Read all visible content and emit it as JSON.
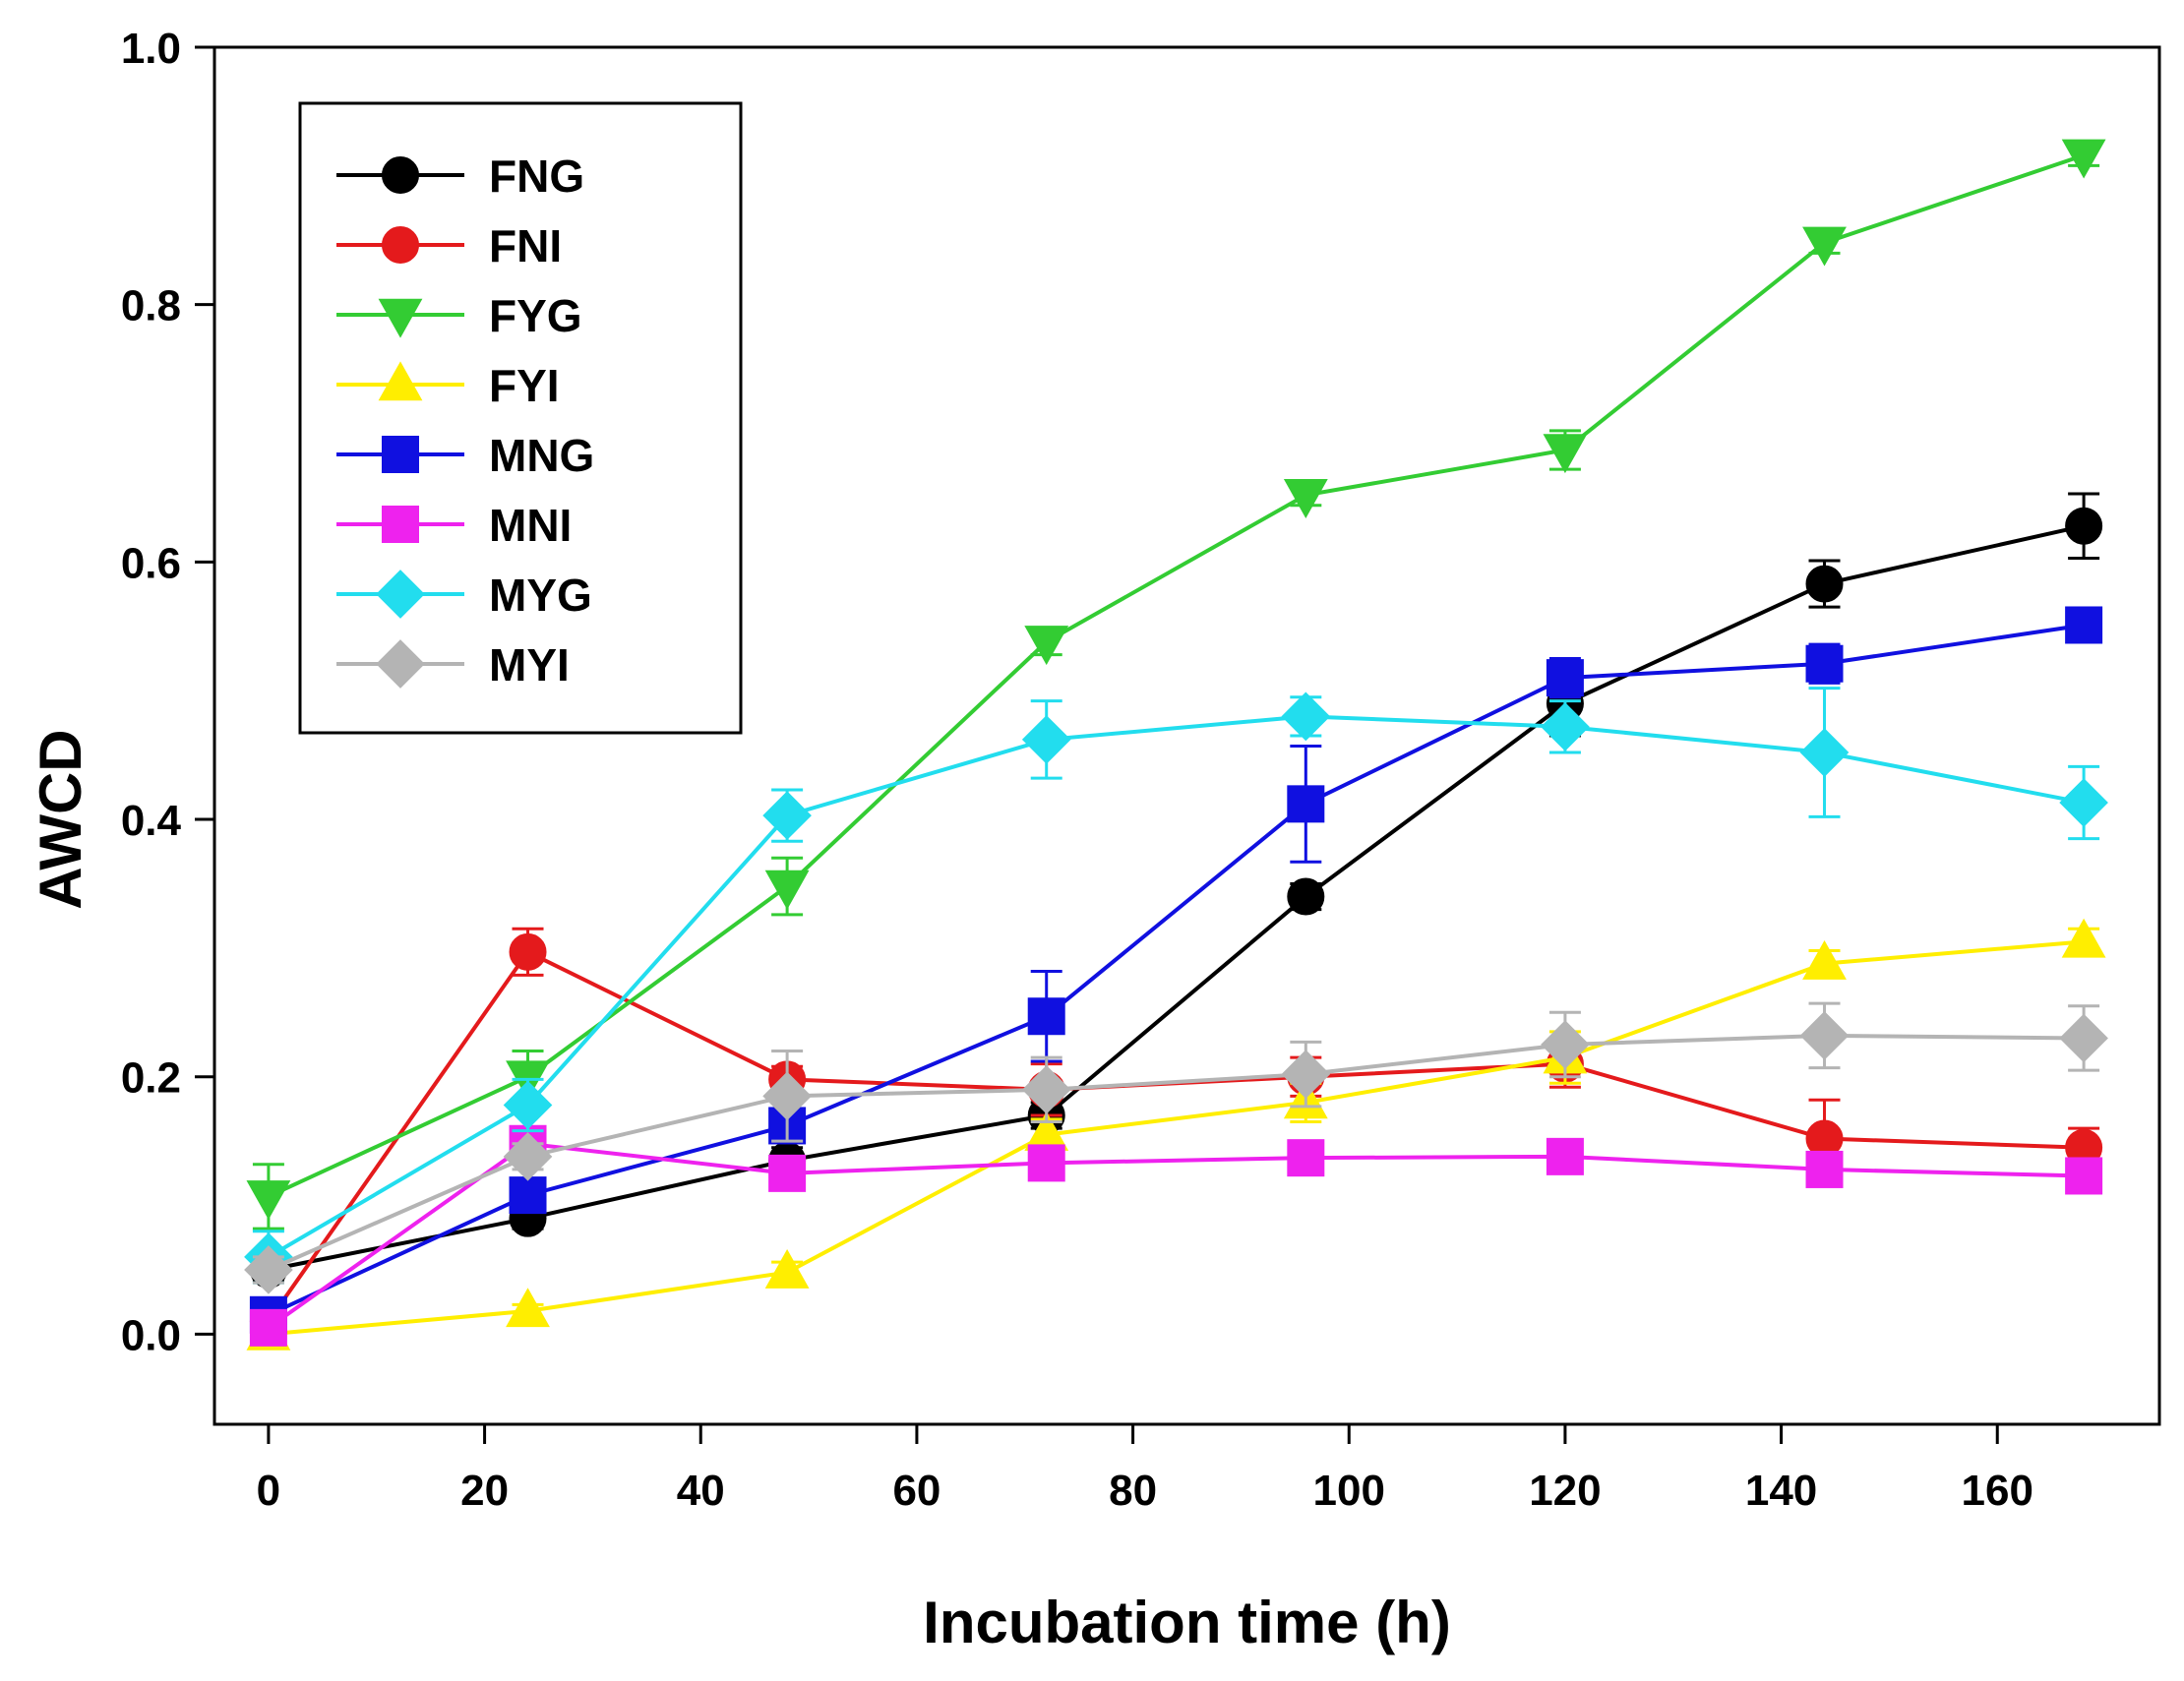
{
  "chart_data": {
    "type": "line",
    "title": "",
    "xlabel": "Incubation time (h)",
    "ylabel": "AWCD",
    "xlim": [
      -5,
      175
    ],
    "ylim": [
      -0.07,
      1.0
    ],
    "xticks": [
      0,
      20,
      40,
      60,
      80,
      100,
      120,
      140,
      160
    ],
    "xtick_labels": [
      "0",
      "20",
      "40",
      "60",
      "80",
      "100",
      "120",
      "140",
      "160"
    ],
    "yticks": [
      0.0,
      0.2,
      0.4,
      0.6,
      0.8,
      1.0
    ],
    "ytick_labels": [
      "0.0",
      "0.2",
      "0.4",
      "0.6",
      "0.8",
      "1.0"
    ],
    "grid": false,
    "legend_position": "top-left",
    "x": [
      0,
      24,
      48,
      72,
      96,
      120,
      144,
      168
    ],
    "series": [
      {
        "name": "FNG",
        "color": "#000000",
        "marker": "circle",
        "values": [
          0.05,
          0.09,
          0.135,
          0.17,
          0.34,
          0.49,
          0.583,
          0.628
        ],
        "errors": [
          0.008,
          0.008,
          0.01,
          0.01,
          0.01,
          0.025,
          0.018,
          0.025
        ]
      },
      {
        "name": "FNI",
        "color": "#e41a1c",
        "marker": "circle",
        "values": [
          0.01,
          0.297,
          0.198,
          0.19,
          0.2,
          0.21,
          0.152,
          0.145
        ],
        "errors": [
          0.005,
          0.018,
          0.01,
          0.02,
          0.015,
          0.018,
          0.03,
          0.015
        ]
      },
      {
        "name": "FYG",
        "color": "#33cc33",
        "marker": "triangle-down",
        "values": [
          0.107,
          0.2,
          0.348,
          0.538,
          0.652,
          0.687,
          0.848,
          0.916
        ],
        "errors": [
          0.025,
          0.02,
          0.022,
          0.01,
          0.008,
          0.015,
          0.008,
          0.008
        ]
      },
      {
        "name": "FYI",
        "color": "#ffee00",
        "marker": "triangle-up",
        "values": [
          0.0,
          0.018,
          0.048,
          0.155,
          0.18,
          0.215,
          0.288,
          0.305
        ],
        "errors": [
          0.005,
          0.005,
          0.008,
          0.012,
          0.015,
          0.02,
          0.01,
          0.01
        ]
      },
      {
        "name": "MNG",
        "color": "#1010e0",
        "marker": "square",
        "values": [
          0.015,
          0.108,
          0.162,
          0.247,
          0.412,
          0.51,
          0.521,
          0.551
        ],
        "errors": [
          0.005,
          0.01,
          0.01,
          0.035,
          0.045,
          0.015,
          0.015,
          0.008
        ]
      },
      {
        "name": "MNI",
        "color": "#ee22ee",
        "marker": "square",
        "values": [
          0.005,
          0.148,
          0.125,
          0.133,
          0.137,
          0.138,
          0.128,
          0.123
        ],
        "errors": [
          0.005,
          0.008,
          0.006,
          0.006,
          0.006,
          0.006,
          0.006,
          0.006
        ]
      },
      {
        "name": "MYG",
        "color": "#22ddee",
        "marker": "diamond",
        "values": [
          0.06,
          0.178,
          0.403,
          0.462,
          0.48,
          0.472,
          0.452,
          0.413
        ],
        "errors": [
          0.02,
          0.02,
          0.02,
          0.03,
          0.015,
          0.02,
          0.05,
          0.028
        ]
      },
      {
        "name": "MYI",
        "color": "#b4b4b4",
        "marker": "diamond",
        "values": [
          0.05,
          0.138,
          0.185,
          0.19,
          0.202,
          0.225,
          0.232,
          0.23
        ],
        "errors": [
          0.01,
          0.01,
          0.035,
          0.025,
          0.025,
          0.025,
          0.025,
          0.025
        ]
      }
    ]
  }
}
